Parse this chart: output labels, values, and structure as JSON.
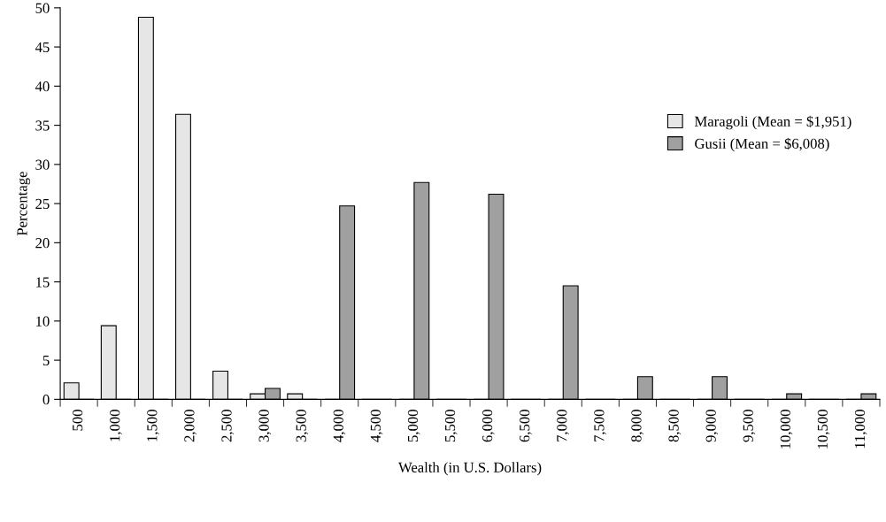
{
  "chart_data": {
    "type": "bar",
    "xlabel": "Wealth (in U.S. Dollars)",
    "ylabel": "Percentage",
    "categories": [
      "500",
      "1,000",
      "1,500",
      "2,000",
      "2,500",
      "3,000",
      "3,500",
      "4,000",
      "4,500",
      "5,000",
      "5,500",
      "6,000",
      "6,500",
      "7,000",
      "7,500",
      "8,000",
      "8,500",
      "9,000",
      "9,500",
      "10,000",
      "10,500",
      "11,000"
    ],
    "series": [
      {
        "name": "Maragoli (Mean = $1,951)",
        "color": "#e6e6e6",
        "values": [
          2.1,
          9.4,
          48.8,
          36.4,
          3.6,
          0.7,
          0.7,
          0,
          0,
          0,
          0,
          0,
          0,
          0,
          0,
          0,
          0,
          0,
          0,
          0,
          0,
          0
        ]
      },
      {
        "name": "Gusii (Mean = $6,008)",
        "color": "#a0a0a0",
        "values": [
          0,
          0,
          0,
          0,
          0,
          1.4,
          0,
          24.7,
          0,
          27.7,
          0,
          26.2,
          0,
          14.5,
          0,
          2.9,
          0,
          2.9,
          0,
          0.7,
          0,
          0.7
        ]
      }
    ],
    "ylim": [
      0,
      50
    ],
    "yticks": [
      0,
      5,
      10,
      15,
      20,
      25,
      30,
      35,
      40,
      45,
      50
    ],
    "grid": false,
    "legend": "right"
  }
}
